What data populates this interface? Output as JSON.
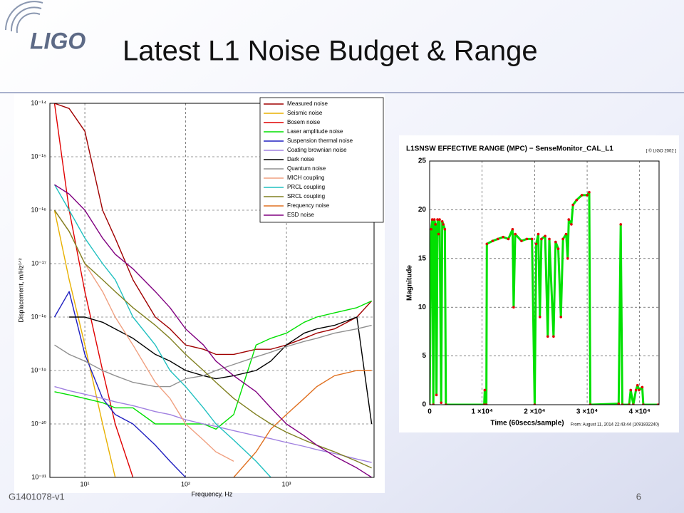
{
  "slide": {
    "logo": "LIGO",
    "title": "Latest L1 Noise Budget & Range",
    "doc_id": "G1401078-v1",
    "page": "6"
  },
  "chart_data": [
    {
      "type": "line",
      "xscale": "log",
      "yscale": "log",
      "grid": true,
      "legend": "upper right",
      "xlabel": "Frequency, Hz",
      "ylabel": "Displacement, m/Hz¹ᐟ²",
      "xlim": [
        4.5,
        7400
      ],
      "ylim": [
        1e-21,
        1e-14
      ],
      "xticks": [
        {
          "value": 10,
          "label": "10¹"
        },
        {
          "value": 100,
          "label": "10²"
        },
        {
          "value": 1000,
          "label": "10³"
        }
      ],
      "yticks": [
        {
          "value": 1e-21,
          "label": "10⁻²¹"
        },
        {
          "value": 1e-20,
          "label": "10⁻²⁰"
        },
        {
          "value": 1e-19,
          "label": "10⁻¹⁹"
        },
        {
          "value": 1e-18,
          "label": "10⁻¹⁸"
        },
        {
          "value": 1e-17,
          "label": "10⁻¹⁷"
        },
        {
          "value": 1e-16,
          "label": "10⁻¹⁶"
        },
        {
          "value": 1e-15,
          "label": "10⁻¹⁵"
        },
        {
          "value": 1e-14,
          "label": "10⁻¹⁴"
        }
      ],
      "x": [
        5,
        7,
        10,
        15,
        20,
        30,
        50,
        70,
        100,
        150,
        200,
        300,
        500,
        700,
        1000,
        1500,
        2000,
        3000,
        5000,
        7000
      ],
      "series": [
        {
          "name": "Measured noise",
          "color": "#a00000",
          "values": [
            1e-14,
            8e-15,
            3e-15,
            1e-16,
            3e-17,
            5e-18,
            1e-18,
            6e-19,
            3e-19,
            2.5e-19,
            2e-19,
            2e-19,
            2.5e-19,
            2.5e-19,
            3e-19,
            4e-19,
            5e-19,
            6e-19,
            1e-18,
            2e-18
          ]
        },
        {
          "name": "Seismic noise",
          "color": "#e8b000",
          "values": [
            1e-16,
            5e-18,
            3e-19,
            1e-20,
            1e-21,
            null,
            null,
            null,
            null,
            null,
            null,
            null,
            null,
            null,
            null,
            null,
            null,
            null,
            null,
            null
          ]
        },
        {
          "name": "Bosem noise",
          "color": "#e00000",
          "values": [
            1e-14,
            1e-16,
            3e-18,
            1e-19,
            1e-20,
            1e-21,
            null,
            null,
            null,
            null,
            null,
            null,
            null,
            null,
            null,
            null,
            null,
            null,
            null,
            null
          ]
        },
        {
          "name": "Laser amplitude noise",
          "color": "#00e000",
          "values": [
            4e-20,
            3.5e-20,
            3e-20,
            2.5e-20,
            2e-20,
            2e-20,
            1e-20,
            1e-20,
            1e-20,
            1e-20,
            8e-21,
            1.5e-20,
            3e-19,
            4e-19,
            5e-19,
            8e-19,
            1e-18,
            1.2e-18,
            1.5e-18,
            2e-18
          ]
        },
        {
          "name": "Suspension thermal noise",
          "color": "#2020c0",
          "values": [
            1e-18,
            3e-18,
            2e-19,
            3e-20,
            1.5e-20,
            1e-20,
            4e-21,
            2e-21,
            1e-21,
            null,
            null,
            null,
            null,
            null,
            null,
            null,
            null,
            null,
            null,
            null
          ]
        },
        {
          "name": "Coating brownian noise",
          "color": "#a080e0",
          "values": [
            5e-20,
            4.2e-20,
            3.6e-20,
            3e-20,
            2.6e-20,
            2.2e-20,
            1.7e-20,
            1.5e-20,
            1.2e-20,
            1e-20,
            9e-21,
            7.5e-21,
            6e-21,
            5.3e-21,
            4.5e-21,
            3.8e-21,
            3.3e-21,
            2.8e-21,
            2.2e-21,
            1.9e-21
          ]
        },
        {
          "name": "Dark noise",
          "color": "#000000",
          "values": [
            null,
            1e-18,
            1e-18,
            8e-19,
            6e-19,
            4e-19,
            2e-19,
            1.5e-19,
            1e-19,
            8e-20,
            7e-20,
            8e-20,
            1e-19,
            1.5e-19,
            3e-19,
            5e-19,
            6e-19,
            7e-19,
            1e-18,
            1e-20
          ]
        },
        {
          "name": "Quantum noise",
          "color": "#909090",
          "values": [
            3e-19,
            2e-19,
            1.5e-19,
            1e-19,
            8e-20,
            6e-20,
            5e-20,
            5e-20,
            7e-20,
            8e-20,
            1e-19,
            1.3e-19,
            1.8e-19,
            2.2e-19,
            2.8e-19,
            3.5e-19,
            4e-19,
            5e-19,
            6e-19,
            7e-19
          ]
        },
        {
          "name": "MICH coupling",
          "color": "#f0a080",
          "values": [
            1e-16,
            4e-17,
            1e-17,
            3e-18,
            1e-18,
            3e-19,
            6e-20,
            3e-20,
            1e-20,
            5e-21,
            3e-21,
            2e-21,
            null,
            null,
            null,
            null,
            null,
            null,
            null,
            null
          ]
        },
        {
          "name": "PRCL coupling",
          "color": "#20c0c0",
          "values": [
            3e-16,
            1e-16,
            3e-17,
            1e-17,
            5e-18,
            1e-18,
            3e-19,
            1e-19,
            5e-20,
            2e-20,
            1e-20,
            5e-21,
            2e-21,
            1e-21,
            null,
            null,
            null,
            null,
            null,
            null
          ]
        },
        {
          "name": "SRCL coupling",
          "color": "#808020",
          "values": [
            1e-16,
            4e-17,
            1e-17,
            5e-18,
            3e-18,
            1.5e-18,
            7e-19,
            4e-19,
            2e-19,
            1e-19,
            6e-20,
            3e-20,
            1.5e-20,
            1e-20,
            7e-21,
            5e-21,
            4e-21,
            3e-21,
            2e-21,
            1.5e-21
          ]
        },
        {
          "name": "Frequency noise",
          "color": "#e07020",
          "values": [
            null,
            null,
            null,
            null,
            null,
            null,
            null,
            null,
            null,
            null,
            null,
            1e-21,
            3e-21,
            8e-21,
            1.5e-20,
            3e-20,
            5e-20,
            8e-20,
            1e-19,
            1e-19
          ]
        },
        {
          "name": "ESD noise",
          "color": "#800080",
          "values": [
            3e-16,
            2e-16,
            1e-16,
            3e-17,
            1.5e-17,
            8e-18,
            3e-18,
            1.5e-18,
            6e-19,
            3e-19,
            1.5e-19,
            8e-20,
            4e-20,
            2e-20,
            1e-20,
            6e-21,
            4e-21,
            2.5e-21,
            1.5e-21,
            1e-21
          ]
        }
      ]
    },
    {
      "type": "line",
      "grid": true,
      "markers": true,
      "title": "L1SNSW EFFECTIVE RANGE (MPC) − SenseMonitor_CAL_L1",
      "note": "[ © LIGO 2002 ]",
      "xlabel": "Time (60secs/sample)",
      "ylabel": "Magnitude",
      "footnote": "From: August 11, 2014 22:43:44 (1091832240)",
      "xlim": [
        0,
        43700
      ],
      "ylim": [
        0,
        25
      ],
      "xticks": [
        0,
        {
          "value": 10000,
          "label": "1 ×10⁴"
        },
        {
          "value": 20000,
          "label": "2 ×10⁴"
        },
        {
          "value": 30000,
          "label": "3 ×10⁴"
        },
        {
          "value": 40000,
          "label": "4 ×10⁴"
        }
      ],
      "yticks": [
        0,
        5,
        10,
        15,
        20,
        25
      ],
      "x": [
        0,
        300,
        500,
        700,
        900,
        1100,
        1300,
        1500,
        1700,
        1900,
        2200,
        2400,
        2600,
        2900,
        3100,
        10400,
        10500,
        10800,
        10900,
        12000,
        13000,
        14000,
        15000,
        15800,
        16000,
        16300,
        17500,
        18500,
        19500,
        20000,
        20300,
        20700,
        21000,
        21300,
        22000,
        22500,
        22800,
        23600,
        24000,
        24500,
        25000,
        25400,
        26000,
        26300,
        26500,
        27000,
        27300,
        28000,
        29000,
        30000,
        30400,
        30600,
        36000,
        36400,
        36700,
        38000,
        38300,
        38800,
        39300,
        39600,
        39900,
        40500,
        40700,
        43500
      ],
      "series": [
        {
          "color": "#00e000",
          "marker_color": "#e00000",
          "values": [
            0,
            18,
            19,
            0,
            19,
            18.5,
            1,
            19,
            17.5,
            19,
            0.2,
            18.8,
            18.5,
            18,
            0,
            0,
            1.5,
            0,
            16.5,
            16.8,
            17,
            17.2,
            17,
            18,
            10,
            17.5,
            16.8,
            17,
            17,
            0,
            16.5,
            17.5,
            9,
            17,
            17.3,
            7,
            17,
            7,
            16.7,
            16,
            9,
            17,
            17.5,
            15,
            19,
            18.5,
            20.5,
            21,
            21.5,
            21.5,
            21.8,
            0,
            0.1,
            18.5,
            0,
            0,
            1.5,
            0,
            1.5,
            2,
            1.5,
            1.8,
            0,
            0
          ]
        }
      ]
    }
  ]
}
